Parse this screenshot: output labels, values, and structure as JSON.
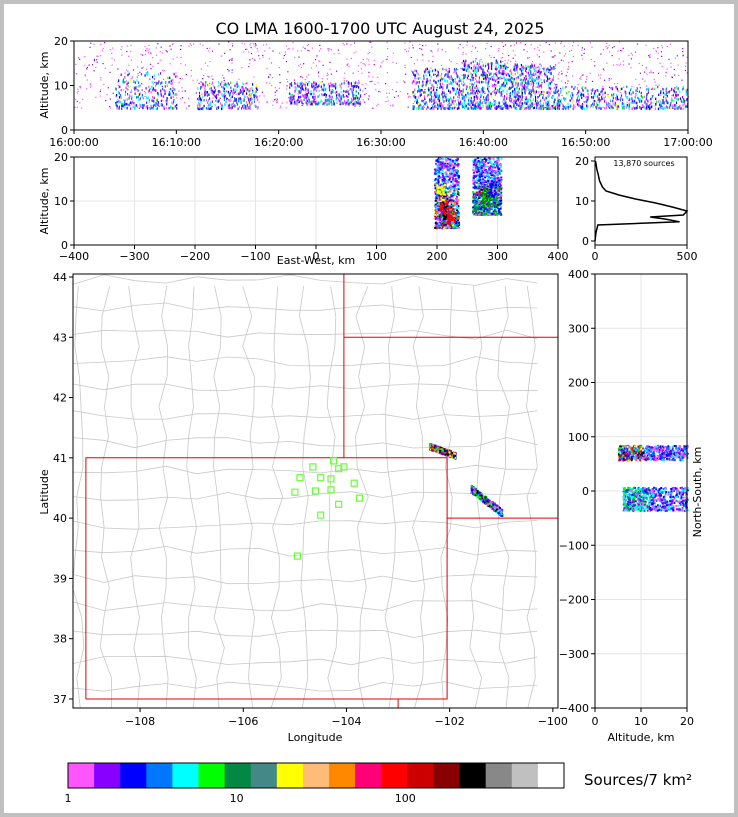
{
  "title": "CO LMA 1600-1700 UTC August 24, 2025",
  "chart_data": [
    {
      "id": "time_height",
      "type": "scatter",
      "ylabel": "Altitude, km",
      "ylim": [
        0,
        20
      ],
      "yticks": [
        0,
        10,
        20
      ],
      "xticks": [
        "16:00:00",
        "16:10:00",
        "16:20:00",
        "16:30:00",
        "16:40:00",
        "16:50:00",
        "17:00:00"
      ],
      "xrange_minutes": [
        0,
        60
      ],
      "bands": [
        {
          "t": [
            4,
            10
          ],
          "alt": [
            5,
            13
          ],
          "density": 0.5
        },
        {
          "t": [
            12,
            18
          ],
          "alt": [
            5,
            11
          ],
          "density": 0.6
        },
        {
          "t": [
            21,
            28
          ],
          "alt": [
            6,
            11
          ],
          "density": 0.7
        },
        {
          "t": [
            33,
            38
          ],
          "alt": [
            5,
            14
          ],
          "density": 0.7
        },
        {
          "t": [
            38,
            42
          ],
          "alt": [
            5,
            16
          ],
          "density": 0.8
        },
        {
          "t": [
            42,
            47
          ],
          "alt": [
            5,
            15
          ],
          "density": 1.0
        },
        {
          "t": [
            47,
            60
          ],
          "alt": [
            5,
            10
          ],
          "density": 0.9
        }
      ]
    },
    {
      "id": "ew_altitude",
      "type": "scatter",
      "xlabel": "East-West, km",
      "ylabel": "Altitude, km",
      "xlim": [
        -400,
        400
      ],
      "ylim": [
        0,
        20
      ],
      "xticks": [
        -400,
        -300,
        -200,
        -100,
        0,
        100,
        200,
        300,
        400
      ],
      "yticks": [
        0,
        10,
        20
      ],
      "clusters": [
        {
          "x": [
            195,
            235
          ],
          "alt": [
            4,
            20
          ],
          "core": [
            [
              215,
              8,
              "black"
            ],
            [
              210,
              9,
              "red"
            ],
            [
              222,
              7,
              "red"
            ],
            [
              205,
              12,
              "yellow"
            ]
          ]
        },
        {
          "x": [
            258,
            305
          ],
          "alt": [
            7,
            20
          ],
          "core": [
            [
              280,
              11,
              "green"
            ],
            [
              290,
              13,
              "blue"
            ]
          ]
        }
      ]
    },
    {
      "id": "altitude_histogram",
      "type": "line",
      "annotation": "13,870 sources",
      "xlim": [
        0,
        500
      ],
      "ylim": [
        0,
        20
      ],
      "xticks": [
        0,
        500
      ],
      "yticks": [
        0,
        10,
        20
      ],
      "profile": [
        [
          0,
          0
        ],
        [
          5,
          2
        ],
        [
          15,
          4
        ],
        [
          460,
          4.8
        ],
        [
          380,
          5.5
        ],
        [
          300,
          6.0
        ],
        [
          480,
          6.5
        ],
        [
          500,
          7.5
        ],
        [
          420,
          8.5
        ],
        [
          330,
          9.5
        ],
        [
          220,
          10.5
        ],
        [
          130,
          11.5
        ],
        [
          60,
          12.5
        ],
        [
          40,
          13.5
        ],
        [
          25,
          15
        ],
        [
          18,
          16.5
        ],
        [
          10,
          18
        ],
        [
          5,
          19.5
        ],
        [
          2,
          20
        ]
      ]
    },
    {
      "id": "plan_view",
      "type": "map",
      "xlabel": "Longitude",
      "ylabel": "Latitude",
      "xlim": [
        -109.3,
        -99.9
      ],
      "ylim": [
        36.85,
        44.05
      ],
      "xticks": [
        -108,
        -106,
        -104,
        -102,
        -100
      ],
      "yticks": [
        37,
        38,
        39,
        40,
        41,
        42,
        43,
        44
      ],
      "stations": [
        [
          -104.25,
          40.95
        ],
        [
          -104.65,
          40.85
        ],
        [
          -104.05,
          40.85
        ],
        [
          -104.15,
          40.82
        ],
        [
          -104.9,
          40.67
        ],
        [
          -104.5,
          40.67
        ],
        [
          -104.3,
          40.65
        ],
        [
          -103.85,
          40.58
        ],
        [
          -104.3,
          40.47
        ],
        [
          -104.6,
          40.45
        ],
        [
          -105.0,
          40.43
        ],
        [
          -103.75,
          40.33
        ],
        [
          -104.15,
          40.23
        ],
        [
          -104.5,
          40.05
        ],
        [
          -104.95,
          39.37
        ]
      ],
      "clusters": [
        {
          "lon": [
            -102.4,
            -101.9
          ],
          "lat": [
            40.95,
            41.2
          ],
          "hot": true
        },
        {
          "lon": [
            -101.6,
            -101.0
          ],
          "lat": [
            40.1,
            40.5
          ],
          "hot": false
        }
      ]
    },
    {
      "id": "ns_altitude",
      "type": "scatter",
      "xlabel": "Altitude, km",
      "ylabel": "North-South, km",
      "xlim": [
        0,
        20
      ],
      "ylim": [
        -400,
        400
      ],
      "xticks": [
        0,
        10,
        20
      ],
      "yticks": [
        -400,
        -300,
        -200,
        -100,
        0,
        100,
        200,
        300,
        400
      ],
      "clusters": [
        {
          "alt": [
            5,
            20
          ],
          "ns": [
            58,
            85
          ],
          "hot": true
        },
        {
          "alt": [
            6,
            20
          ],
          "ns": [
            -35,
            8
          ],
          "hot": false
        }
      ]
    }
  ],
  "colorbar": {
    "label": "Sources/7 km²",
    "ticks": [
      "1",
      "10",
      "100"
    ],
    "colors": [
      "#ff55ff",
      "#8800ff",
      "#0000ff",
      "#0077ff",
      "#00ffff",
      "#00ff00",
      "#008844",
      "#448888",
      "#ffff00",
      "#ffbb77",
      "#ff8800",
      "#ff0077",
      "#ff0000",
      "#cc0000",
      "#880000",
      "#000000",
      "#888888",
      "#c0c0c0",
      "#ffffff"
    ]
  }
}
